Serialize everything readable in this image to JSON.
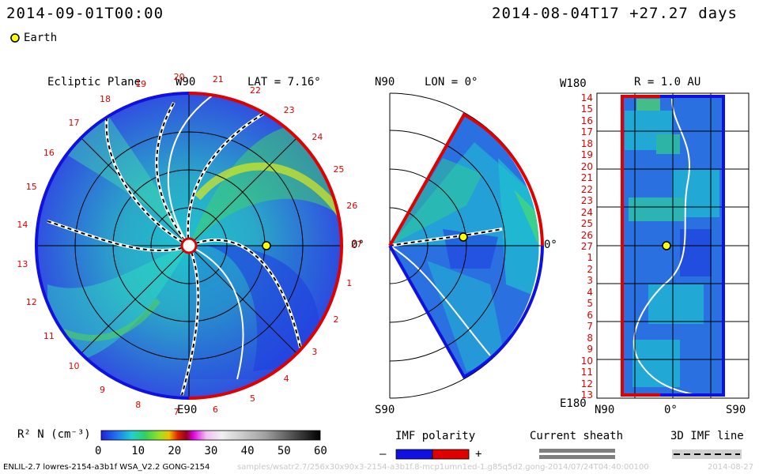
{
  "header": {
    "current_time": "2014-09-01T00:00",
    "run_info": "2014-08-04T17 +27.27 days",
    "earth_label": "Earth"
  },
  "panels": {
    "ecliptic": {
      "title": "Ecliptic Plane",
      "lat": "LAT = 7.16°",
      "top_label": "W90",
      "bottom_label": "E90",
      "right_label": "0°",
      "day_labels": [
        "27",
        "1",
        "2",
        "3",
        "4",
        "5",
        "6",
        "7",
        "8",
        "9",
        "10",
        "11",
        "12",
        "13",
        "14",
        "15",
        "16",
        "17",
        "18",
        "19",
        "20",
        "21",
        "22",
        "23",
        "24",
        "25",
        "26"
      ]
    },
    "meridional": {
      "top_label": "N90",
      "lon": "LON = 0°",
      "bottom_label": "S90",
      "right_label": "0°"
    },
    "radial": {
      "top_left_label": "W180",
      "title": "R = 1.0 AU",
      "bottom_left_label": "E180",
      "bottom_axis": [
        "N90",
        "0°",
        "S90"
      ],
      "day_labels": [
        "14",
        "15",
        "16",
        "17",
        "18",
        "19",
        "20",
        "21",
        "22",
        "23",
        "24",
        "25",
        "26",
        "27",
        "1",
        "2",
        "3",
        "4",
        "5",
        "6",
        "7",
        "8",
        "9",
        "10",
        "11",
        "12",
        "13"
      ]
    }
  },
  "colorbar": {
    "label": "R² N (cm⁻³)",
    "ticks": [
      "0",
      "10",
      "20",
      "30",
      "40",
      "50",
      "60"
    ]
  },
  "legend": {
    "imf_polarity": "IMF polarity",
    "minus": "–",
    "plus": "+",
    "current_sheath": "Current sheath",
    "imf_line": "3D IMF line"
  },
  "footer": {
    "model_info": "ENLIL-2.7 lowres-2154-a3b1f WSA_V2.2 GONG-2154",
    "run_path": "samples/wsatr2.7/256x30x90x3-2154-a3b1f.8-mcp1umn1ed-1.g85q5d2.gong-2014/07/24T04:40:00100",
    "corner_date": "2014-08-27"
  },
  "colors": {
    "red": "#e00000",
    "blue": "#1010e0",
    "earth": "#ffff00"
  }
}
